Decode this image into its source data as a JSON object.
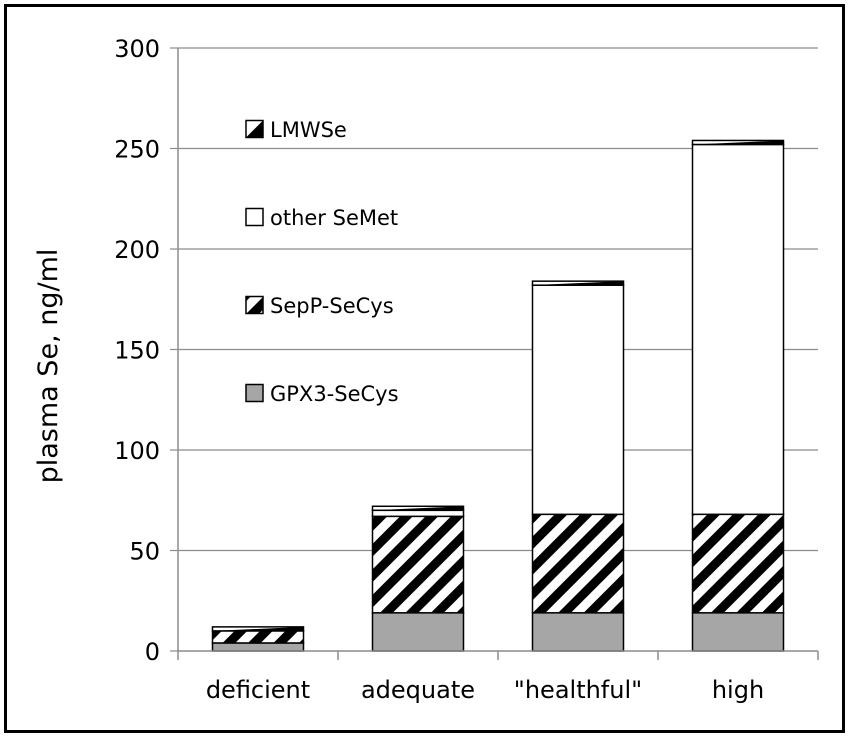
{
  "chart_data": {
    "type": "bar",
    "stacked": true,
    "title": "",
    "xlabel": "",
    "ylabel": "plasma Se, ng/ml",
    "ylim": [
      0,
      300
    ],
    "yticks": [
      "0",
      "50",
      "100",
      "150",
      "200",
      "250",
      "300"
    ],
    "categories": [
      "deficient",
      "adequate",
      "\"healthful\"",
      "high"
    ],
    "grid": "horizontal",
    "legend_position": "top-left (inside plot)",
    "legend_order": [
      "LMWSe",
      "other SeMet",
      "SepP-SeCys",
      "GPX3-SeCys"
    ],
    "series": [
      {
        "name": "GPX3-SeCys",
        "pattern": "solid-gray",
        "color": "#a6a6a6",
        "values": [
          4,
          19,
          19,
          19
        ]
      },
      {
        "name": "SepP-SeCys",
        "pattern": "diagonal-stripe",
        "color": "#000000",
        "values": [
          6,
          48,
          49,
          49
        ]
      },
      {
        "name": "other SeMet",
        "pattern": "white",
        "color": "#ffffff",
        "values": [
          0,
          3,
          114,
          184
        ]
      },
      {
        "name": "LMWSe",
        "pattern": "half-diagonal",
        "color": "#000000",
        "values": [
          2,
          2,
          2,
          2
        ]
      }
    ]
  }
}
